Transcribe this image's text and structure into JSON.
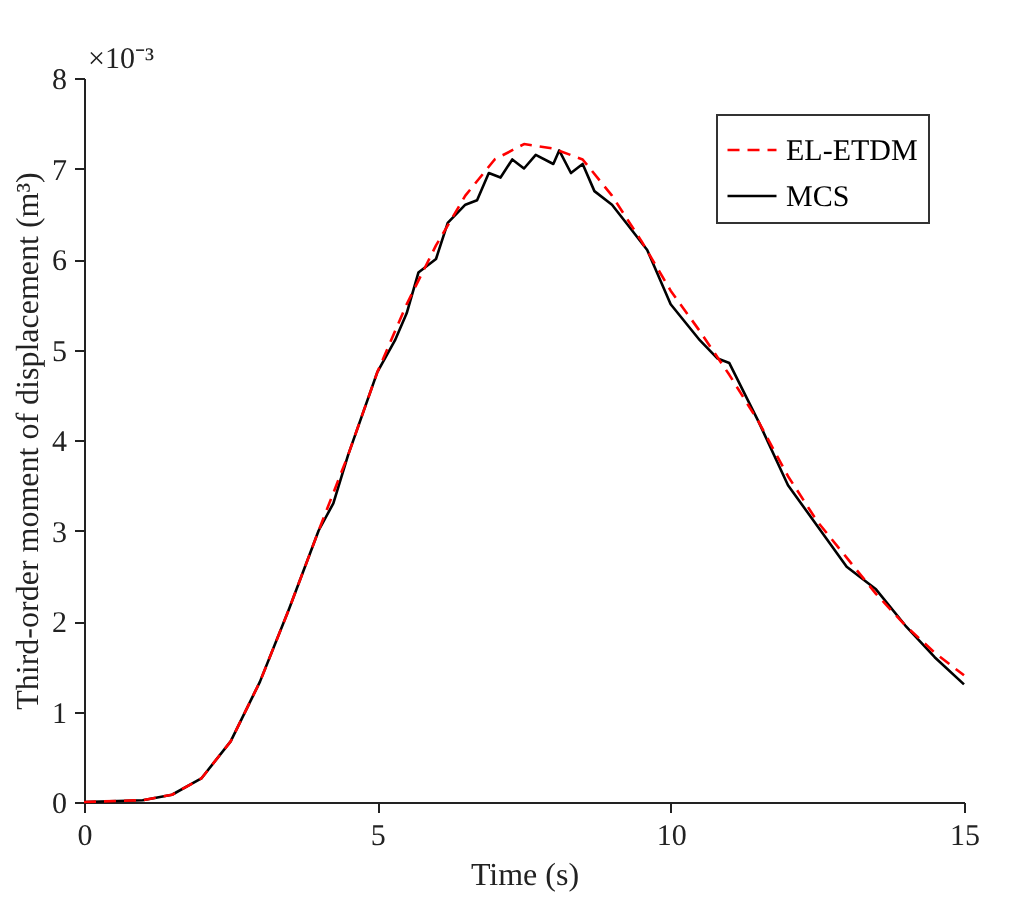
{
  "chart_data": {
    "type": "line",
    "xlabel": "Time (s)",
    "ylabel": "Third-order moment of displacement (m³)",
    "annotations": [
      "×10⁻³"
    ],
    "xlim": [
      0,
      15
    ],
    "xticks": [
      0,
      5,
      10,
      15
    ],
    "ylim": [
      0,
      8
    ],
    "yticks": [
      0,
      1,
      2,
      3,
      4,
      5,
      6,
      7,
      8
    ],
    "grid": false,
    "legend": "top right",
    "marker": "none",
    "series": [
      {
        "name": "EL-ETDM",
        "color": "#ff0000",
        "line_style": "dashed",
        "x": [
          0,
          1,
          1.5,
          2,
          2.5,
          3,
          3.5,
          4,
          4.5,
          5,
          5.5,
          6,
          6.5,
          7,
          7.5,
          8,
          8.5,
          9,
          9.5,
          10,
          10.5,
          11,
          11.5,
          12,
          12.5,
          13,
          13.5,
          14,
          14.5,
          15
        ],
        "values": [
          0,
          0.02,
          0.08,
          0.26,
          0.67,
          1.33,
          2.14,
          3.0,
          3.83,
          4.75,
          5.5,
          6.15,
          6.7,
          7.1,
          7.27,
          7.22,
          7.1,
          6.7,
          6.2,
          5.65,
          5.2,
          4.72,
          4.2,
          3.6,
          3.1,
          2.7,
          2.3,
          1.95,
          1.65,
          1.4
        ]
      },
      {
        "name": "MCS",
        "color": "#000000",
        "line_style": "solid",
        "x": [
          0,
          1,
          1.5,
          2,
          2.5,
          3,
          3.5,
          4,
          4.25,
          4.5,
          5,
          5.3,
          5.5,
          5.7,
          6,
          6.2,
          6.5,
          6.7,
          6.9,
          7.1,
          7.3,
          7.5,
          7.7,
          8,
          8.1,
          8.3,
          8.5,
          8.7,
          9,
          9.3,
          9.6,
          10,
          10.5,
          10.8,
          11,
          11.5,
          12,
          12.5,
          13,
          13.5,
          14,
          14.5,
          15
        ],
        "values": [
          0,
          0.02,
          0.08,
          0.26,
          0.67,
          1.33,
          2.14,
          3.0,
          3.3,
          3.83,
          4.75,
          5.1,
          5.4,
          5.85,
          6.0,
          6.4,
          6.6,
          6.65,
          6.95,
          6.9,
          7.1,
          7.0,
          7.15,
          7.05,
          7.2,
          6.95,
          7.05,
          6.75,
          6.6,
          6.35,
          6.1,
          5.5,
          5.1,
          4.9,
          4.85,
          4.2,
          3.5,
          3.05,
          2.6,
          2.35,
          1.95,
          1.6,
          1.3
        ]
      }
    ]
  }
}
